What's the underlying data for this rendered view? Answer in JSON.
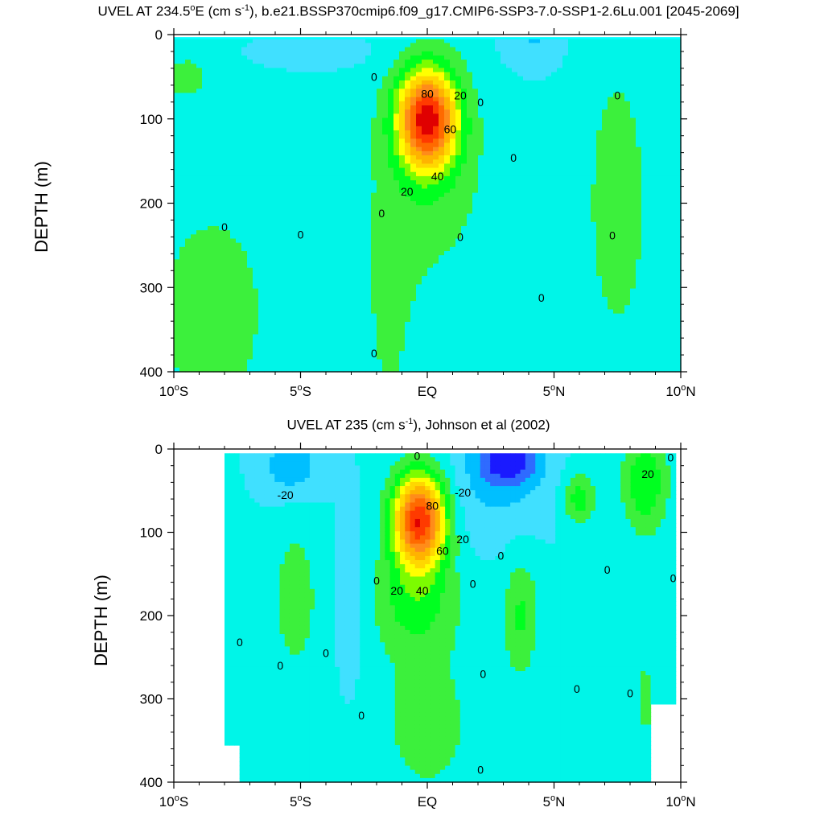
{
  "chart_data": [
    {
      "type": "contour",
      "title_parts": {
        "pre": "UVEL AT 234.5",
        "sup1": "o",
        "mid": "E (cm s",
        "sup2": "-1",
        "post": "), b.e21.BSSP370cmip6.f09_g17.CMIP6-SSP3-7.0-SSP1-2.6Lu.001 [2045-2069]"
      },
      "ylabel": "DEPTH (m)",
      "xlim": [
        -10,
        10
      ],
      "ylim": [
        0,
        400
      ],
      "y_reversed": true,
      "xticks": [
        {
          "v": -10,
          "label": "10",
          "sup": "o",
          "hemi": "S"
        },
        {
          "v": -5,
          "label": "5",
          "sup": "o",
          "hemi": "S"
        },
        {
          "v": 0,
          "label": "EQ",
          "sup": "",
          "hemi": ""
        },
        {
          "v": 5,
          "label": "5",
          "sup": "o",
          "hemi": "N"
        },
        {
          "v": 10,
          "label": "10",
          "sup": "o",
          "hemi": "N"
        }
      ],
      "yticks": [
        0,
        100,
        200,
        300,
        400
      ],
      "contour_interval": 10,
      "core": {
        "lat": 0,
        "depth": 100,
        "max": 95
      },
      "contour_labels": [
        {
          "text": "80",
          "lat": 0.0,
          "depth": 70
        },
        {
          "text": "20",
          "lat": 1.3,
          "depth": 72
        },
        {
          "text": "0",
          "lat": 2.1,
          "depth": 80
        },
        {
          "text": "60",
          "lat": 0.9,
          "depth": 112
        },
        {
          "text": "40",
          "lat": 0.4,
          "depth": 168
        },
        {
          "text": "20",
          "lat": -0.8,
          "depth": 186
        },
        {
          "text": "0",
          "lat": -2.1,
          "depth": 50
        },
        {
          "text": "0",
          "lat": 7.5,
          "depth": 72
        },
        {
          "text": "0",
          "lat": 3.4,
          "depth": 146
        },
        {
          "text": "0",
          "lat": -8.0,
          "depth": 228
        },
        {
          "text": "0",
          "lat": -5.0,
          "depth": 237
        },
        {
          "text": "0",
          "lat": -1.8,
          "depth": 212
        },
        {
          "text": "0",
          "lat": 1.3,
          "depth": 240
        },
        {
          "text": "0",
          "lat": 7.3,
          "depth": 238
        },
        {
          "text": "0",
          "lat": 4.5,
          "depth": 312
        },
        {
          "text": "0",
          "lat": -2.1,
          "depth": 378
        }
      ]
    },
    {
      "type": "contour",
      "title_parts": {
        "pre": "UVEL AT 235 (cm s",
        "sup1": "-1",
        "post": "), Johnson et al (2002)"
      },
      "ylabel": "DEPTH (m)",
      "xlim": [
        -10,
        10
      ],
      "ylim": [
        0,
        400
      ],
      "y_reversed": true,
      "xticks": [
        {
          "v": -10,
          "label": "10",
          "sup": "o",
          "hemi": "S"
        },
        {
          "v": -5,
          "label": "5",
          "sup": "o",
          "hemi": "S"
        },
        {
          "v": 0,
          "label": "EQ",
          "sup": "",
          "hemi": ""
        },
        {
          "v": 5,
          "label": "5",
          "sup": "o",
          "hemi": "N"
        },
        {
          "v": 10,
          "label": "10",
          "sup": "o",
          "hemi": "N"
        }
      ],
      "yticks": [
        0,
        100,
        200,
        300,
        400
      ],
      "contour_interval": 10,
      "core": {
        "lat": -0.2,
        "depth": 85,
        "max": 100
      },
      "contour_labels": [
        {
          "text": "0",
          "lat": -0.4,
          "depth": 8
        },
        {
          "text": "-20",
          "lat": -5.6,
          "depth": 55
        },
        {
          "text": "-20",
          "lat": 1.4,
          "depth": 52
        },
        {
          "text": "80",
          "lat": 0.2,
          "depth": 68
        },
        {
          "text": "20",
          "lat": 1.4,
          "depth": 108
        },
        {
          "text": "60",
          "lat": 0.6,
          "depth": 122
        },
        {
          "text": "0",
          "lat": 2.9,
          "depth": 128
        },
        {
          "text": "0",
          "lat": 7.1,
          "depth": 145
        },
        {
          "text": "0",
          "lat": 9.6,
          "depth": 10
        },
        {
          "text": "20",
          "lat": 8.7,
          "depth": 30
        },
        {
          "text": "0",
          "lat": -2.0,
          "depth": 158
        },
        {
          "text": "20",
          "lat": -1.2,
          "depth": 170
        },
        {
          "text": "40",
          "lat": -0.2,
          "depth": 170
        },
        {
          "text": "0",
          "lat": 1.8,
          "depth": 162
        },
        {
          "text": "0",
          "lat": 9.7,
          "depth": 155
        },
        {
          "text": "0",
          "lat": -7.4,
          "depth": 232
        },
        {
          "text": "0",
          "lat": -4.0,
          "depth": 245
        },
        {
          "text": "0",
          "lat": -5.8,
          "depth": 260
        },
        {
          "text": "0",
          "lat": 2.2,
          "depth": 270
        },
        {
          "text": "0",
          "lat": 5.9,
          "depth": 288
        },
        {
          "text": "0",
          "lat": 8.0,
          "depth": 293
        },
        {
          "text": "0",
          "lat": -2.6,
          "depth": 320
        },
        {
          "text": "0",
          "lat": 2.1,
          "depth": 385
        }
      ]
    }
  ]
}
